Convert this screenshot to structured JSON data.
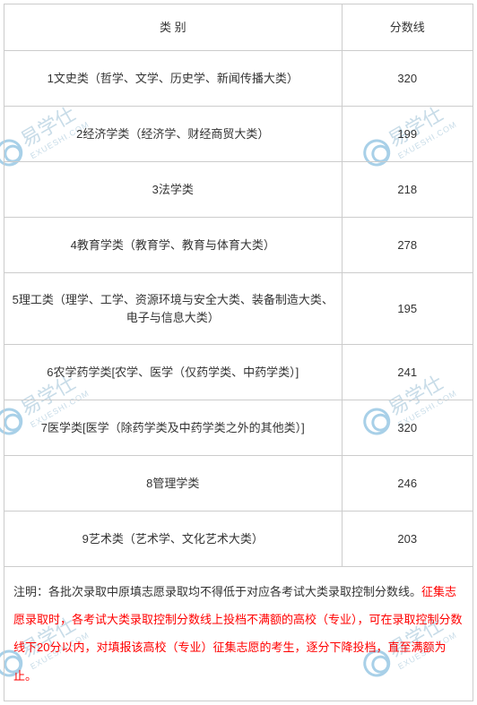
{
  "table": {
    "headers": {
      "category": "类 别",
      "score": "分数线"
    },
    "rows": [
      {
        "category": "1文史类（哲学、文学、历史学、新闻传播大类）",
        "score": "320"
      },
      {
        "category": "2经济学类（经济学、财经商贸大类）",
        "score": "199"
      },
      {
        "category": "3法学类",
        "score": "218"
      },
      {
        "category": "4教育学类（教育学、教育与体育大类）",
        "score": "278"
      },
      {
        "category": "5理工类（理学、工学、资源环境与安全大类、装备制造大类、电子与信息大类）",
        "score": "195",
        "tall": true
      },
      {
        "category": "6农学药学类[农学、医学（仅药学类、中药学类）]",
        "score": "241"
      },
      {
        "category": "7医学类[医学（除药学类及中药学类之外的其他类）]",
        "score": "320"
      },
      {
        "category": "8管理学类",
        "score": "246"
      },
      {
        "category": "9艺术类（艺术学、文化艺术大类）",
        "score": "203"
      }
    ],
    "note": {
      "label": "注明：",
      "black_part": "各批次录取中原填志愿录取均不得低于对应各考试大类录取控制分数线。",
      "red_part": "征集志愿录取时，各考试大类录取控制分数线上投档不满额的高校（专业），可在录取控制分数线下20分以内，对填报该高校（专业）征集志愿的考生，逐分下降投档，直至满额为止。"
    }
  },
  "watermark": {
    "text": "易学仕",
    "sub": "EXUESHI.COM"
  },
  "styles": {
    "border_color": "#cccccc",
    "text_color": "#333333",
    "red_color": "#ff0000",
    "background_color": "#ffffff",
    "watermark_color": "#c8dce8",
    "font_size": 13
  }
}
